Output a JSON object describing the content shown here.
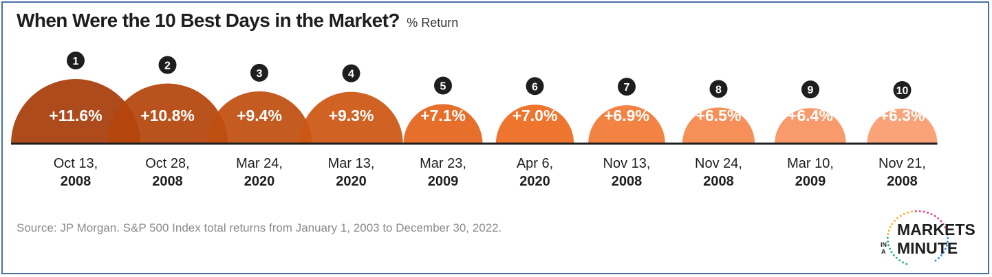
{
  "header": {
    "title": "When Were the 10 Best Days in the Market?",
    "subtitle": "% Return"
  },
  "chart_data": {
    "type": "bar",
    "title": "When Were the 10 Best Days in the Market?",
    "unit_label": "% Return",
    "ranks": [
      "1",
      "2",
      "3",
      "4",
      "5",
      "6",
      "7",
      "8",
      "9",
      "10"
    ],
    "categories": [
      "Oct 13, 2008",
      "Oct 28, 2008",
      "Mar 24, 2020",
      "Mar 13, 2020",
      "Mar 23, 2009",
      "Apr 6, 2020",
      "Nov 13, 2008",
      "Nov 24, 2008",
      "Mar 10, 2009",
      "Nov 21, 2008"
    ],
    "date_lines": [
      [
        "Oct 13,",
        "2008"
      ],
      [
        "Oct 28,",
        "2008"
      ],
      [
        "Mar 24,",
        "2020"
      ],
      [
        "Mar 13,",
        "2020"
      ],
      [
        "Mar 23,",
        "2009"
      ],
      [
        "Apr 6,",
        "2020"
      ],
      [
        "Nov 13,",
        "2008"
      ],
      [
        "Nov 24,",
        "2008"
      ],
      [
        "Mar 10,",
        "2009"
      ],
      [
        "Nov 21,",
        "2008"
      ]
    ],
    "values": [
      11.6,
      10.8,
      9.4,
      9.3,
      7.1,
      7.0,
      6.9,
      6.5,
      6.4,
      6.3
    ],
    "value_labels": [
      "+11.6%",
      "+10.8%",
      "+9.4%",
      "+9.3%",
      "+7.1%",
      "+7.0%",
      "+6.9%",
      "+6.5%",
      "+6.4%",
      "+6.3%"
    ],
    "colors": [
      "#a83d0b",
      "#b5450c",
      "#c04f10",
      "#cc5613",
      "#e4641c",
      "#ec6a1e",
      "#f27a35",
      "#f6874b",
      "#f89260",
      "#fa9b6e"
    ]
  },
  "footer": {
    "source": "Source: JP Morgan. S&P 500 Index total returns from January 1, 2003 to December 30, 2022."
  },
  "logo": {
    "line1": "MARKETS",
    "line2_small_top": "IN",
    "line2_small_bottom": "A",
    "line2": "MINUTE",
    "dot_colors": [
      "#2bb673",
      "#f7b731",
      "#e84393",
      "#3a86ff"
    ]
  }
}
